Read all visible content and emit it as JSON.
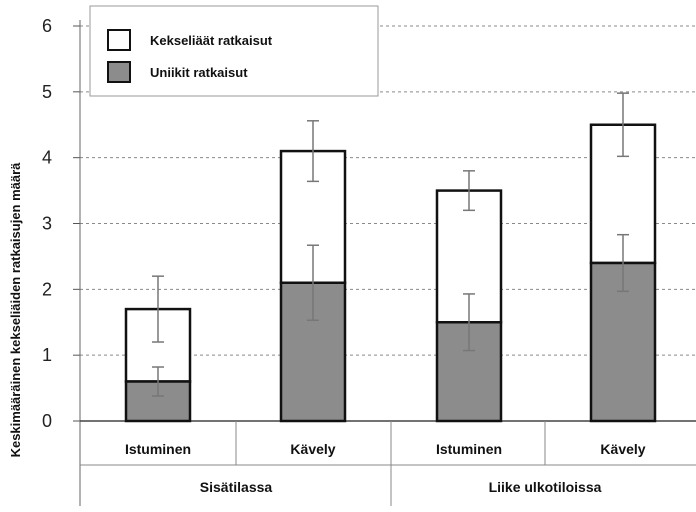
{
  "chart_data": {
    "type": "bar",
    "stacked": true,
    "ylabel": "Keskimääräinen kekseliäiden ratkaisujen määrä",
    "ylim": [
      0,
      6
    ],
    "yticks": [
      "0",
      "1",
      "2",
      "3",
      "4",
      "5",
      "6"
    ],
    "grid": true,
    "legend_position": "top-left",
    "groups": [
      "Sisätilassa",
      "Liike ulkotiloissa"
    ],
    "categories": [
      "Istuminen",
      "Kävely",
      "Istuminen",
      "Kävely"
    ],
    "category_group": [
      0,
      0,
      1,
      1
    ],
    "series": [
      {
        "name": "Uniikit ratkaisut",
        "color": "#8c8c8c",
        "values": [
          0.6,
          2.1,
          1.5,
          2.4
        ],
        "error": [
          0.22,
          0.57,
          0.43,
          0.43
        ]
      },
      {
        "name": "Kekseliäät ratkaisut",
        "color": "#ffffff",
        "totals": [
          1.7,
          4.1,
          3.5,
          4.5
        ],
        "error": [
          0.5,
          0.46,
          0.3,
          0.48
        ]
      }
    ]
  }
}
